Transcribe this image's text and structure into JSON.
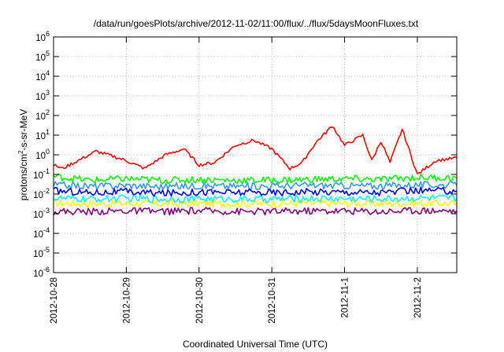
{
  "chart_data": {
    "type": "line",
    "title": "/data/run/goesPlots/archive/2012-11-02/11:00/flux/../flux/5daysMoonFluxes.txt",
    "xlabel": "Coordinated Universal Time (UTC)",
    "ylabel_parts": [
      "protons/cm",
      "2",
      "-s-sr-MeV"
    ],
    "yscale": "log",
    "ylim": [
      1e-06,
      1000000.0
    ],
    "xlim": [
      "2012-10-28 00:00",
      "2012-11-02 13:00"
    ],
    "grid": true,
    "x_ticks": [
      "2012-10-28",
      "2012-10-29",
      "2012-10-30",
      "2012-10-31",
      "2012-11-1",
      "2012-11-2"
    ],
    "y_ticks": [
      {
        "base": "10",
        "exp": "-6",
        "value": 1e-06
      },
      {
        "base": "10",
        "exp": "-5",
        "value": 1e-05
      },
      {
        "base": "10",
        "exp": "-4",
        "value": 0.0001
      },
      {
        "base": "10",
        "exp": "-3",
        "value": 0.001
      },
      {
        "base": "10",
        "exp": "-2",
        "value": 0.01
      },
      {
        "base": "10",
        "exp": "-1",
        "value": 0.1
      },
      {
        "base": "10",
        "exp": "0",
        "value": 1
      },
      {
        "base": "10",
        "exp": "1",
        "value": 10
      },
      {
        "base": "10",
        "exp": "2",
        "value": 100
      },
      {
        "base": "10",
        "exp": "3",
        "value": 1000
      },
      {
        "base": "10",
        "exp": "4",
        "value": 10000
      },
      {
        "base": "10",
        "exp": "5",
        "value": 100000
      },
      {
        "base": "10",
        "exp": "6",
        "value": 1000000
      }
    ],
    "series": [
      {
        "color": "#ffff00",
        "x": [
          "2012-10-28 00:00",
          "2012-10-28 12:00",
          "2012-10-29 00:00",
          "2012-10-29 12:00",
          "2012-10-30 00:00",
          "2012-10-30 12:00",
          "2012-10-31 00:00",
          "2012-10-31 12:00",
          "2012-11-01 00:00",
          "2012-11-01 12:00",
          "2012-11-02 00:00",
          "2012-11-02 13:00"
        ],
        "y": [
          0.0035,
          0.0032,
          0.0033,
          0.0031,
          0.0033,
          0.0032,
          0.0032,
          0.0034,
          0.0033,
          0.0032,
          0.0034,
          0.0033
        ]
      },
      {
        "color": "#00ffff",
        "x": [
          "2012-10-28 00:00",
          "2012-10-28 12:00",
          "2012-10-29 00:00",
          "2012-10-29 12:00",
          "2012-10-30 00:00",
          "2012-10-30 12:00",
          "2012-10-31 00:00",
          "2012-10-31 12:00",
          "2012-11-01 00:00",
          "2012-11-01 12:00",
          "2012-11-02 00:00",
          "2012-11-02 13:00"
        ],
        "y": [
          0.006,
          0.0055,
          0.006,
          0.0055,
          0.0058,
          0.0056,
          0.0055,
          0.006,
          0.0058,
          0.0057,
          0.0062,
          0.006
        ]
      },
      {
        "color": "#3399ff",
        "x": [
          "2012-10-28 00:00",
          "2012-10-28 12:00",
          "2012-10-29 00:00",
          "2012-10-29 12:00",
          "2012-10-30 00:00",
          "2012-10-30 12:00",
          "2012-10-31 00:00",
          "2012-10-31 12:00",
          "2012-11-01 00:00",
          "2012-11-01 12:00",
          "2012-11-02 00:00",
          "2012-11-02 13:00"
        ],
        "y": [
          0.03,
          0.025,
          0.028,
          0.024,
          0.027,
          0.025,
          0.026,
          0.028,
          0.027,
          0.026,
          0.03,
          0.028
        ]
      },
      {
        "color": "#00ff00",
        "x": [
          "2012-10-28 00:00",
          "2012-10-28 12:00",
          "2012-10-29 00:00",
          "2012-10-29 12:00",
          "2012-10-30 00:00",
          "2012-10-30 12:00",
          "2012-10-31 00:00",
          "2012-10-31 12:00",
          "2012-11-01 00:00",
          "2012-11-01 12:00",
          "2012-11-02 00:00",
          "2012-11-02 13:00"
        ],
        "y": [
          0.08,
          0.05,
          0.06,
          0.05,
          0.055,
          0.05,
          0.05,
          0.055,
          0.06,
          0.055,
          0.07,
          0.065
        ]
      },
      {
        "color": "#0000ff",
        "x": [
          "2012-10-28 00:00",
          "2012-10-28 12:00",
          "2012-10-29 00:00",
          "2012-10-29 12:00",
          "2012-10-30 00:00",
          "2012-10-30 12:00",
          "2012-10-31 00:00",
          "2012-10-31 12:00",
          "2012-11-01 00:00",
          "2012-11-01 12:00",
          "2012-11-02 00:00",
          "2012-11-02 13:00"
        ],
        "y": [
          0.015,
          0.012,
          0.013,
          0.011,
          0.013,
          0.012,
          0.012,
          0.013,
          0.013,
          0.012,
          0.015,
          0.014
        ]
      },
      {
        "color": "#800080",
        "x": [
          "2012-10-28 00:00",
          "2012-10-28 12:00",
          "2012-10-29 00:00",
          "2012-10-29 12:00",
          "2012-10-30 00:00",
          "2012-10-30 12:00",
          "2012-10-31 00:00",
          "2012-10-31 12:00",
          "2012-11-01 00:00",
          "2012-11-01 12:00",
          "2012-11-02 00:00",
          "2012-11-02 13:00"
        ],
        "y": [
          0.0013,
          0.0013,
          0.0014,
          0.0013,
          0.0014,
          0.0013,
          0.0013,
          0.0014,
          0.0014,
          0.0013,
          0.0015,
          0.0014
        ]
      },
      {
        "color": "#ff0000",
        "x": [
          "2012-10-28 00:00",
          "2012-10-28 03:00",
          "2012-10-28 08:00",
          "2012-10-28 14:00",
          "2012-10-28 19:00",
          "2012-10-29 00:00",
          "2012-10-29 06:00",
          "2012-10-29 13:00",
          "2012-10-29 19:00",
          "2012-10-30 00:00",
          "2012-10-30 05:00",
          "2012-10-30 12:00",
          "2012-10-30 18:00",
          "2012-10-31 00:00",
          "2012-10-31 06:00",
          "2012-10-31 10:00",
          "2012-10-31 13:00",
          "2012-10-31 15:00",
          "2012-10-31 20:00",
          "2012-11-01 00:00",
          "2012-11-01 06:00",
          "2012-11-01 09:00",
          "2012-11-01 12:00",
          "2012-11-01 15:00",
          "2012-11-01 19:00",
          "2012-11-02 00:00",
          "2012-11-02 06:00",
          "2012-11-02 13:00"
        ],
        "y": [
          0.3,
          0.2,
          0.5,
          1.5,
          0.9,
          0.5,
          0.2,
          1.0,
          2.0,
          0.3,
          0.4,
          3.0,
          5.5,
          2.0,
          0.2,
          0.4,
          2.0,
          5.0,
          30,
          3.0,
          10,
          0.5,
          5.0,
          0.4,
          20,
          0.1,
          0.5,
          0.7
        ]
      }
    ]
  }
}
